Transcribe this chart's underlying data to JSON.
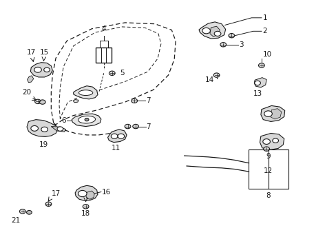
{
  "background_color": "#ffffff",
  "line_color": "#1a1a1a",
  "fig_width": 4.89,
  "fig_height": 3.6,
  "dpi": 100,
  "door_outline": {
    "x": [
      0.155,
      0.148,
      0.148,
      0.152,
      0.162,
      0.195,
      0.27,
      0.37,
      0.46,
      0.51,
      0.522,
      0.518,
      0.5,
      0.455,
      0.37,
      0.28,
      0.215,
      0.18,
      0.165,
      0.158,
      0.155
    ],
    "y": [
      0.505,
      0.56,
      0.63,
      0.7,
      0.77,
      0.84,
      0.89,
      0.915,
      0.91,
      0.885,
      0.84,
      0.765,
      0.7,
      0.64,
      0.59,
      0.555,
      0.535,
      0.515,
      0.5,
      0.498,
      0.505
    ]
  },
  "door_inner": {
    "x": [
      0.175,
      0.172,
      0.175,
      0.185,
      0.215,
      0.28,
      0.36,
      0.43,
      0.47,
      0.478,
      0.468,
      0.438,
      0.372,
      0.295,
      0.232,
      0.198,
      0.182,
      0.175
    ],
    "y": [
      0.52,
      0.58,
      0.65,
      0.735,
      0.82,
      0.875,
      0.898,
      0.894,
      0.87,
      0.828,
      0.768,
      0.714,
      0.675,
      0.64,
      0.61,
      0.59,
      0.545,
      0.52
    ]
  }
}
